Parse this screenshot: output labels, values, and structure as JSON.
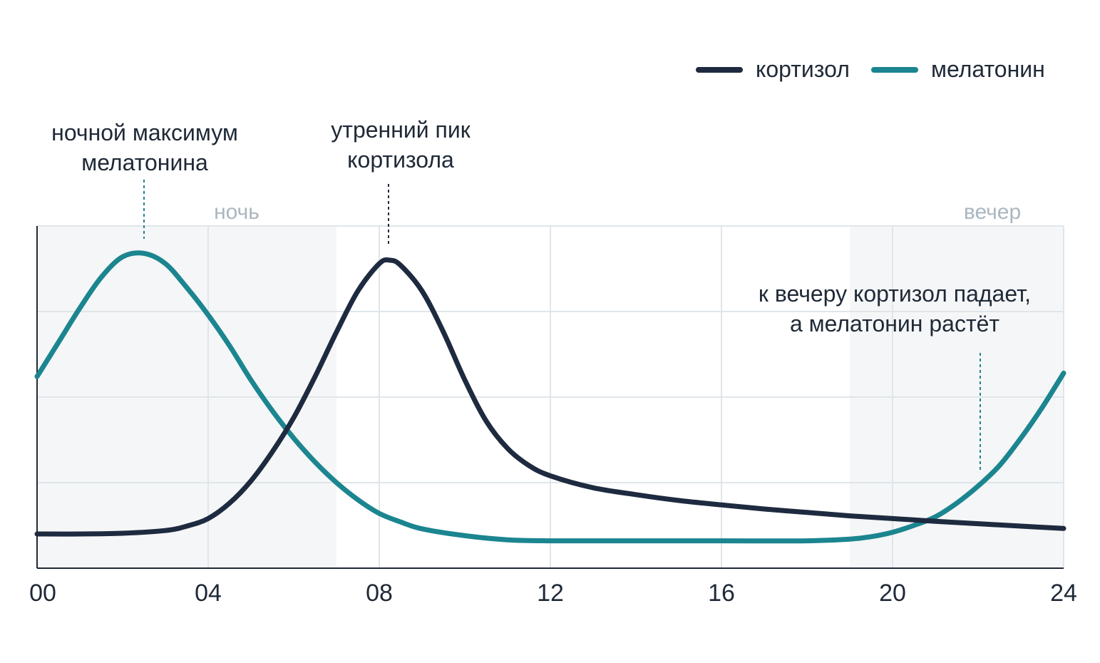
{
  "chart_data": {
    "type": "line",
    "title": "",
    "xlabel": "",
    "ylabel": "",
    "xlim": [
      0,
      24
    ],
    "ylim": [
      0,
      100
    ],
    "x_ticks": [
      0,
      4,
      8,
      12,
      16,
      20,
      24
    ],
    "x_tick_labels": [
      "00",
      "04",
      "08",
      "12",
      "16",
      "20",
      "24"
    ],
    "y_gridlines": [
      25,
      50,
      75,
      100
    ],
    "x_gridlines": [
      4,
      8,
      12,
      16,
      20,
      24
    ],
    "grid": true,
    "legend_position": "top-right",
    "series": [
      {
        "name": "кортизол",
        "color": "#1e2a3f",
        "x": [
          0,
          1,
          2,
          3,
          3.5,
          4,
          4.5,
          5,
          5.5,
          6,
          6.5,
          7,
          7.5,
          8,
          8.25,
          8.5,
          9,
          9.5,
          10,
          10.5,
          11,
          11.5,
          12,
          13,
          14,
          15,
          16,
          17,
          18,
          19,
          20,
          21,
          22,
          23,
          24
        ],
        "values": [
          10,
          10,
          10.2,
          11,
          12.3,
          14.5,
          19,
          25.5,
          34,
          44,
          56,
          69,
          81,
          89,
          90,
          88.5,
          81,
          69,
          55,
          43,
          35,
          30,
          27,
          23.5,
          21.5,
          19.8,
          18.5,
          17.3,
          16.3,
          15.3,
          14.5,
          13.7,
          13,
          12.3,
          11.6
        ]
      },
      {
        "name": "мелатонин",
        "color": "#1b8590",
        "x": [
          0,
          0.5,
          1,
          1.5,
          2,
          2.5,
          3,
          3.5,
          4,
          4.5,
          5,
          5.5,
          6,
          6.5,
          7,
          7.5,
          8,
          8.5,
          9,
          10,
          11,
          12,
          14,
          16,
          18,
          19,
          19.5,
          20,
          20.5,
          21,
          21.5,
          22,
          22.5,
          23,
          23.5,
          24
        ],
        "values": [
          56,
          66,
          76,
          85,
          91,
          92,
          89,
          82,
          74,
          65,
          55,
          46,
          38,
          31,
          25,
          20,
          16,
          13.5,
          11.5,
          9.5,
          8.3,
          8,
          8,
          8,
          8,
          8.5,
          9.2,
          10.5,
          12.5,
          15,
          19,
          24,
          30,
          38,
          47,
          57
        ]
      }
    ],
    "shaded_bands": [
      {
        "label": "ночь",
        "from": 0,
        "to": 7
      },
      {
        "label": "вечер",
        "from": 19,
        "to": 24
      }
    ],
    "annotations": [
      {
        "lines": [
          "ночной максимум",
          "мелатонина"
        ],
        "x": 2.5,
        "y": 92,
        "color": "#1b8590"
      },
      {
        "lines": [
          "утренний пик",
          "кортизола"
        ],
        "x": 8.2,
        "y": 90,
        "color": "#1e2a3f"
      },
      {
        "lines": [
          "к вечеру кортизол падает,",
          "а мелатонин растёт"
        ],
        "x": 22,
        "y": 30,
        "color": "#1b8590"
      }
    ]
  }
}
